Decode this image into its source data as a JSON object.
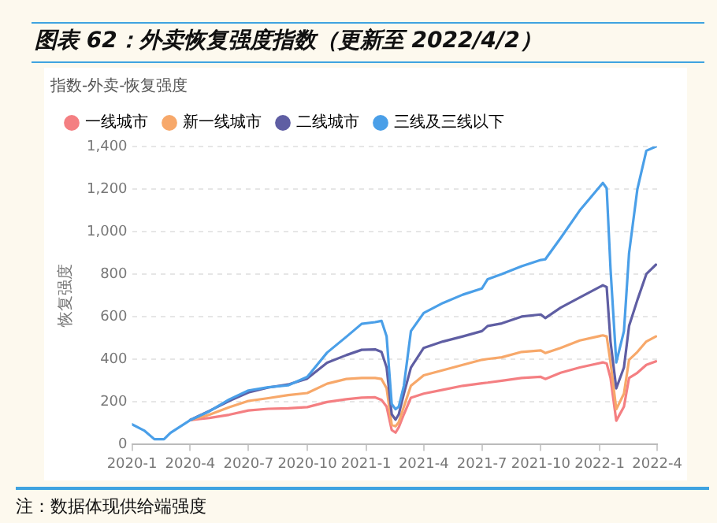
{
  "chart_data": {
    "type": "line",
    "title": "图表 62：外卖恢复强度指数（更新至 2022/4/2）",
    "subtitle": "指数-外卖-恢复强度",
    "ylabel": "恢复强度",
    "annotations": [
      "注：数据体现供给端强度"
    ],
    "x": [
      "2020-01-01",
      "2020-01-20",
      "2020-02-05",
      "2020-02-20",
      "2020-03-01",
      "2020-04-01",
      "2020-05-01",
      "2020-06-01",
      "2020-07-01",
      "2020-08-01",
      "2020-09-01",
      "2020-10-01",
      "2020-11-01",
      "2020-12-01",
      "2020-12-25",
      "2021-01-15",
      "2021-01-25",
      "2021-02-02",
      "2021-02-10",
      "2021-02-16",
      "2021-02-21",
      "2021-03-01",
      "2021-03-12",
      "2021-04-01",
      "2021-05-01",
      "2021-06-01",
      "2021-07-01",
      "2021-07-10",
      "2021-08-01",
      "2021-09-01",
      "2021-10-01",
      "2021-10-08",
      "2021-11-01",
      "2021-12-01",
      "2022-01-06",
      "2022-01-12",
      "2022-01-18",
      "2022-01-27",
      "2022-02-08",
      "2022-02-16",
      "2022-03-01",
      "2022-03-15",
      "2022-03-30"
    ],
    "series": [
      {
        "name": "一线城市",
        "color": "#f47f82",
        "values": [
          null,
          null,
          null,
          null,
          null,
          115,
          125,
          140,
          160,
          168,
          170,
          176,
          200,
          213,
          220,
          222,
          210,
          178,
          68,
          56,
          81,
          142,
          220,
          239,
          257,
          276,
          288,
          291,
          300,
          313,
          318,
          308,
          337,
          362,
          386,
          381,
          313,
          112,
          178,
          313,
          337,
          374,
          391
        ]
      },
      {
        "name": "新一线城市",
        "color": "#f7a86a",
        "values": [
          null,
          null,
          null,
          null,
          null,
          115,
          140,
          175,
          205,
          218,
          232,
          242,
          286,
          308,
          313,
          313,
          308,
          264,
          93,
          86,
          105,
          178,
          276,
          325,
          349,
          374,
          398,
          402,
          410,
          435,
          442,
          430,
          454,
          489,
          513,
          508,
          386,
          166,
          239,
          398,
          435,
          484,
          508
        ]
      },
      {
        "name": "二线城市",
        "color": "#5f5ea3",
        "values": [
          null,
          null,
          null,
          null,
          null,
          115,
          158,
          205,
          245,
          268,
          282,
          310,
          384,
          420,
          445,
          447,
          435,
          362,
          142,
          117,
          142,
          239,
          362,
          454,
          484,
          508,
          533,
          557,
          569,
          601,
          611,
          594,
          643,
          691,
          748,
          740,
          484,
          264,
          362,
          557,
          679,
          801,
          845
        ]
      },
      {
        "name": "三线及三线以下",
        "color": "#4a9fe8",
        "values": [
          95,
          66,
          25,
          25,
          55,
          115,
          156,
          212,
          254,
          269,
          278,
          318,
          432,
          506,
          567,
          575,
          581,
          508,
          190,
          166,
          178,
          276,
          533,
          618,
          665,
          704,
          733,
          777,
          801,
          838,
          867,
          870,
          970,
          1100,
          1229,
          1204,
          826,
          386,
          533,
          899,
          1200,
          1380,
          1400
        ]
      }
    ],
    "xlim": [
      "2020-01",
      "2022-04"
    ],
    "xticks": [
      {
        "value": "2020-01",
        "label": "2020-1"
      },
      {
        "value": "2020-04",
        "label": "2020-4"
      },
      {
        "value": "2020-07",
        "label": "2020-7"
      },
      {
        "value": "2020-10",
        "label": "2020-10"
      },
      {
        "value": "2021-01",
        "label": "2021-1"
      },
      {
        "value": "2021-04",
        "label": "2021-4"
      },
      {
        "value": "2021-07",
        "label": "2021-7"
      },
      {
        "value": "2021-10",
        "label": "2021-10"
      },
      {
        "value": "2022-01",
        "label": "2022-1"
      },
      {
        "value": "2022-04",
        "label": "2022-4"
      }
    ],
    "ylim": [
      0,
      1400
    ],
    "yticks": [
      0,
      {
        "value": 200,
        "label": "200"
      },
      {
        "value": 400,
        "label": "400"
      },
      {
        "value": 600,
        "label": "600"
      },
      {
        "value": 800,
        "label": "800"
      },
      {
        "value": 1000,
        "label": "1,000"
      },
      {
        "value": 1200,
        "label": "1,200"
      },
      {
        "value": 1400,
        "label": "1,400"
      }
    ],
    "grid": "y",
    "legend": "top left",
    "marker": "none",
    "line_style": "solid"
  }
}
